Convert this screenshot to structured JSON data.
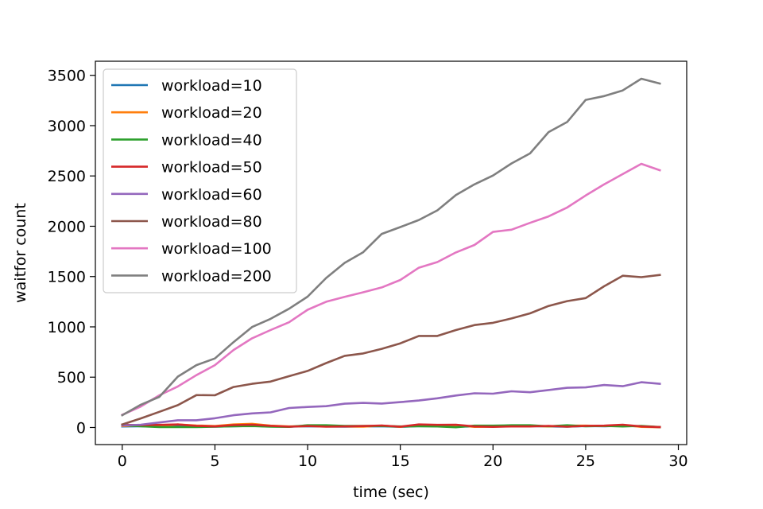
{
  "chart_data": {
    "type": "line",
    "title": "",
    "xlabel": "time (sec)",
    "ylabel": "waitfor count",
    "xlim": [
      -1.45,
      30.45
    ],
    "ylim": [
      -170,
      3640
    ],
    "xticks": [
      0,
      5,
      10,
      15,
      20,
      25,
      30
    ],
    "yticks": [
      0,
      500,
      1000,
      1500,
      2000,
      2500,
      3000,
      3500
    ],
    "grid": false,
    "legend_position": "upper-left",
    "x": [
      0,
      1,
      2,
      3,
      4,
      5,
      6,
      7,
      8,
      9,
      10,
      11,
      12,
      13,
      14,
      15,
      16,
      17,
      18,
      19,
      20,
      21,
      22,
      23,
      24,
      25,
      26,
      27,
      28,
      29
    ],
    "series": [
      {
        "name": "workload=10",
        "color": "#1f77b4",
        "values": [
          10,
          12,
          10,
          14,
          10,
          8,
          12,
          16,
          10,
          8,
          12,
          10,
          8,
          10,
          12,
          6,
          14,
          12,
          8,
          10,
          10,
          12,
          14,
          10,
          8,
          14,
          12,
          18,
          10,
          4
        ]
      },
      {
        "name": "workload=20",
        "color": "#ff7f0e",
        "values": [
          14,
          18,
          14,
          30,
          20,
          14,
          30,
          36,
          18,
          10,
          14,
          16,
          10,
          8,
          18,
          6,
          26,
          20,
          22,
          6,
          8,
          14,
          16,
          10,
          18,
          18,
          14,
          24,
          6,
          2
        ]
      },
      {
        "name": "workload=40",
        "color": "#2ca02c",
        "values": [
          24,
          12,
          4,
          4,
          4,
          8,
          12,
          14,
          8,
          6,
          22,
          22,
          16,
          16,
          14,
          10,
          12,
          10,
          2,
          18,
          18,
          22,
          22,
          12,
          22,
          12,
          16,
          10,
          16,
          4
        ]
      },
      {
        "name": "workload=50",
        "color": "#d62728",
        "values": [
          28,
          24,
          26,
          30,
          16,
          10,
          24,
          28,
          16,
          8,
          14,
          8,
          10,
          14,
          20,
          8,
          30,
          26,
          28,
          10,
          6,
          10,
          10,
          16,
          8,
          16,
          18,
          28,
          10,
          4
        ]
      },
      {
        "name": "workload=60",
        "color": "#9467bd",
        "values": [
          20,
          28,
          50,
          72,
          72,
          92,
          122,
          140,
          150,
          194,
          204,
          212,
          236,
          244,
          238,
          252,
          268,
          290,
          318,
          340,
          336,
          360,
          350,
          372,
          394,
          398,
          422,
          410,
          450,
          434
        ]
      },
      {
        "name": "workload=80",
        "color": "#8c564b",
        "values": [
          30,
          90,
          156,
          222,
          322,
          320,
          402,
          434,
          456,
          510,
          562,
          640,
          712,
          736,
          782,
          836,
          910,
          910,
          968,
          1018,
          1040,
          1084,
          1134,
          1208,
          1256,
          1286,
          1404,
          1508,
          1494,
          1516
        ]
      },
      {
        "name": "workload=100",
        "color": "#e377c2",
        "values": [
          126,
          208,
          320,
          408,
          520,
          620,
          770,
          886,
          968,
          1046,
          1170,
          1250,
          1298,
          1344,
          1392,
          1466,
          1588,
          1644,
          1740,
          1814,
          1944,
          1966,
          2034,
          2098,
          2186,
          2306,
          2416,
          2518,
          2620,
          2556
        ]
      },
      {
        "name": "workload=200",
        "color": "#7f7f7f",
        "values": [
          122,
          226,
          304,
          506,
          620,
          686,
          848,
          998,
          1080,
          1180,
          1300,
          1486,
          1636,
          1742,
          1924,
          1992,
          2062,
          2158,
          2310,
          2416,
          2504,
          2624,
          2724,
          2936,
          3036,
          3256,
          3294,
          3350,
          3466,
          3418
        ]
      }
    ]
  }
}
